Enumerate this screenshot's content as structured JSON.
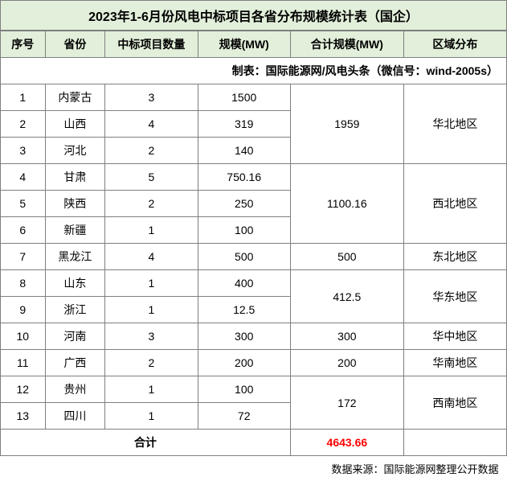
{
  "title": "2023年1-6月份风电中标项目各省分布规模统计表（国企）",
  "subtitle": "制表：国际能源网/风电头条（微信号：wind-2005s）",
  "headers": {
    "seq": "序号",
    "province": "省份",
    "count": "中标项目数量",
    "scale": "规模(MW)",
    "totalScale": "合计规模(MW)",
    "region": "区域分布"
  },
  "colors": {
    "headerBg": "#e2efda",
    "border": "#7f7f7f",
    "totalText": "#ff0000"
  },
  "groups": [
    {
      "region": "华北地区",
      "totalScale": "1959",
      "rows": [
        {
          "seq": "1",
          "province": "内蒙古",
          "count": "3",
          "scale": "1500"
        },
        {
          "seq": "2",
          "province": "山西",
          "count": "4",
          "scale": "319"
        },
        {
          "seq": "3",
          "province": "河北",
          "count": "2",
          "scale": "140"
        }
      ]
    },
    {
      "region": "西北地区",
      "totalScale": "1100.16",
      "rows": [
        {
          "seq": "4",
          "province": "甘肃",
          "count": "5",
          "scale": "750.16"
        },
        {
          "seq": "5",
          "province": "陕西",
          "count": "2",
          "scale": "250"
        },
        {
          "seq": "6",
          "province": "新疆",
          "count": "1",
          "scale": "100"
        }
      ]
    },
    {
      "region": "东北地区",
      "totalScale": "500",
      "rows": [
        {
          "seq": "7",
          "province": "黑龙江",
          "count": "4",
          "scale": "500"
        }
      ]
    },
    {
      "region": "华东地区",
      "totalScale": "412.5",
      "rows": [
        {
          "seq": "8",
          "province": "山东",
          "count": "1",
          "scale": "400"
        },
        {
          "seq": "9",
          "province": "浙江",
          "count": "1",
          "scale": "12.5"
        }
      ]
    },
    {
      "region": "华中地区",
      "totalScale": "300",
      "rows": [
        {
          "seq": "10",
          "province": "河南",
          "count": "3",
          "scale": "300"
        }
      ]
    },
    {
      "region": "华南地区",
      "totalScale": "200",
      "rows": [
        {
          "seq": "11",
          "province": "广西",
          "count": "2",
          "scale": "200"
        }
      ]
    },
    {
      "region": "西南地区",
      "totalScale": "172",
      "rows": [
        {
          "seq": "12",
          "province": "贵州",
          "count": "1",
          "scale": "100"
        },
        {
          "seq": "13",
          "province": "四川",
          "count": "1",
          "scale": "72"
        }
      ]
    }
  ],
  "totalRow": {
    "label": "合计",
    "value": "4643.66"
  },
  "footer": "数据来源：国际能源网整理公开数据"
}
